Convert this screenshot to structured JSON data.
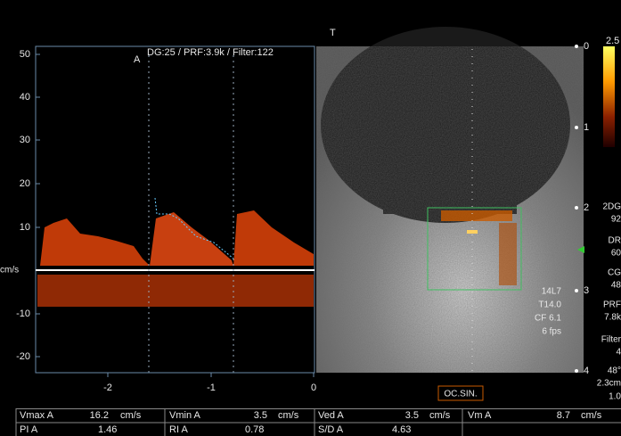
{
  "doppler": {
    "header": "DG:25 /  PRF:3.9k  / Filter:122",
    "marker": "A",
    "y_ticks": [
      "50",
      "40",
      "30",
      "20",
      "10",
      "-10",
      "-20"
    ],
    "y_unit": "cm/s",
    "x_ticks": [
      "-2",
      "-1",
      "0"
    ]
  },
  "image": {
    "top_marker": "T",
    "depth_ticks": [
      "0",
      "1",
      "2",
      "3",
      "4"
    ],
    "color_scale_max": "2.5",
    "probe": [
      "14L7",
      "T14.0",
      "CF 6.1",
      "6 fps"
    ],
    "settings": [
      "2DG",
      "92",
      "DR",
      "60",
      "CG",
      "48",
      "PRF",
      "7.8k",
      "Filter",
      "4",
      "48°",
      "2.3cm",
      "1.0"
    ],
    "label": "OC.SIN."
  },
  "measurements": {
    "rows": [
      [
        "Vmax A",
        "16.2",
        "cm/s",
        "Vmin A",
        "3.5",
        "cm/s",
        "Ved A",
        "3.5",
        "cm/s",
        "Vm A",
        "8.7",
        "cm/s"
      ],
      [
        "PI A",
        "1.46",
        "RI A",
        "0.78",
        "S/D A",
        "4.63"
      ]
    ]
  }
}
